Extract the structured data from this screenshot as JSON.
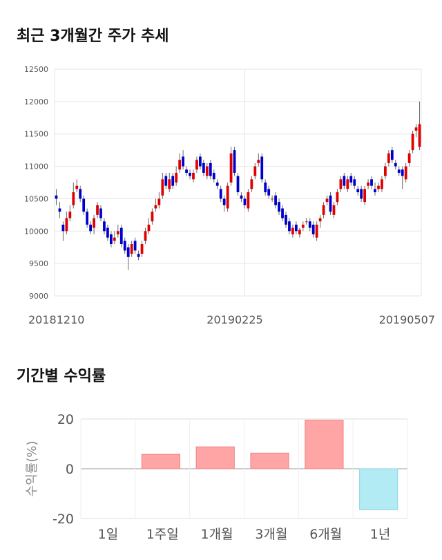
{
  "titles": {
    "price_trend": "최근 3개월간 주가 추세",
    "period_returns": "기간별 수익률"
  },
  "colors": {
    "up": "#e00000",
    "down": "#0000cc",
    "wick": "#666666",
    "grid": "#e6e6e6",
    "positive_bar": "#ffa5a5",
    "negative_bar": "#b3ebf5"
  },
  "chart_data": [
    {
      "type": "candlestick",
      "title": "최근 3개월간 주가 추세",
      "ylim": [
        9000,
        12500
      ],
      "y_ticks": [
        "12500",
        "12000",
        "11500",
        "11000",
        "10500",
        "10000",
        "9500",
        "9000"
      ],
      "x_tick_labels": [
        "20181210",
        "20190225",
        "20190507"
      ],
      "grid": true,
      "closes": [
        10500,
        10300,
        10000,
        10200,
        10300,
        10600,
        10700,
        10500,
        10300,
        10100,
        10000,
        10200,
        10400,
        10200,
        10000,
        9900,
        9800,
        9900,
        10000,
        9800,
        9700,
        9600,
        9800,
        9700,
        9600,
        9800,
        10000,
        10100,
        10300,
        10400,
        10500,
        10800,
        10700,
        10800,
        10700,
        10900,
        11100,
        11000,
        10900,
        10850,
        10900,
        11100,
        11000,
        10900,
        11000,
        10850,
        10800,
        10700,
        10500,
        10400,
        10700,
        11200,
        10900,
        10600,
        10500,
        10400,
        10600,
        10800,
        11000,
        11100,
        10800,
        10600,
        10550,
        10500,
        10400,
        10300,
        10200,
        10100,
        10000,
        10050,
        10000,
        10020,
        10100,
        10150,
        10050,
        9950,
        10100,
        10200,
        10400,
        10500,
        10300,
        10400,
        10600,
        10800,
        10700,
        10800,
        10750,
        10700,
        10600,
        10500,
        10650,
        10750,
        10700,
        10600,
        10700,
        10800,
        11000,
        11200,
        11100,
        11000,
        10900,
        10850,
        11000,
        11200,
        11500,
        11600,
        11650
      ],
      "opens": [
        10550,
        10350,
        10100,
        10000,
        10200,
        10400,
        10650,
        10650,
        10500,
        10300,
        10100,
        10050,
        10250,
        10350,
        10150,
        10050,
        9950,
        9850,
        9950,
        10050,
        9850,
        9750,
        9650,
        9850,
        9650,
        9650,
        9850,
        10000,
        10150,
        10350,
        10400,
        10550,
        10850,
        10650,
        10850,
        10750,
        10950,
        11150,
        10950,
        10900,
        10800,
        10950,
        11150,
        11050,
        10850,
        11050,
        10900,
        10750,
        10650,
        10500,
        10350,
        10750,
        11250,
        10850,
        10550,
        10500,
        10350,
        10650,
        10850,
        11050,
        11150,
        10750,
        10650,
        10500,
        10550,
        10450,
        10350,
        10250,
        10150,
        9950,
        10100,
        9950,
        10050,
        10150,
        10150,
        10100,
        9900,
        10150,
        10250,
        10450,
        10550,
        10250,
        10450,
        10650,
        10850,
        10650,
        10850,
        10800,
        10650,
        10650,
        10450,
        10700,
        10800,
        10650,
        10650,
        10650,
        10850,
        11050,
        11250,
        11050,
        10950,
        10950,
        10800,
        11050,
        11250,
        11550,
        11300
      ],
      "highs": [
        10650,
        10450,
        10150,
        10300,
        10400,
        10750,
        10800,
        10700,
        10550,
        10350,
        10150,
        10250,
        10450,
        10400,
        10200,
        10100,
        10000,
        10000,
        10100,
        10100,
        9900,
        9800,
        9850,
        9900,
        9700,
        9850,
        10050,
        10200,
        10350,
        10500,
        10600,
        10900,
        10900,
        10900,
        10900,
        11000,
        11200,
        11250,
        11000,
        10950,
        10950,
        11150,
        11200,
        11100,
        11050,
        11100,
        10950,
        10800,
        10700,
        10550,
        10750,
        11300,
        11300,
        10900,
        10600,
        10550,
        10650,
        10850,
        11050,
        11200,
        11200,
        10800,
        10700,
        10550,
        10600,
        10500,
        10400,
        10300,
        10200,
        10100,
        10150,
        10050,
        10150,
        10200,
        10200,
        10150,
        10150,
        10250,
        10450,
        10550,
        10600,
        10450,
        10650,
        10850,
        10900,
        10850,
        10900,
        10850,
        10700,
        10700,
        10700,
        10800,
        10850,
        10750,
        10750,
        10850,
        11050,
        11250,
        11300,
        11100,
        11000,
        11000,
        11050,
        11250,
        11550,
        11650,
        12000
      ],
      "lows": [
        10400,
        10200,
        9850,
        9950,
        10150,
        10350,
        10600,
        10450,
        10250,
        10050,
        9950,
        9950,
        10200,
        10150,
        9950,
        9850,
        9750,
        9800,
        9900,
        9750,
        9650,
        9400,
        9600,
        9650,
        9550,
        9600,
        9800,
        9950,
        10100,
        10300,
        10350,
        10500,
        10650,
        10600,
        10650,
        10700,
        10900,
        10950,
        10850,
        10800,
        10750,
        10900,
        10950,
        10850,
        10800,
        10800,
        10750,
        10650,
        10450,
        10300,
        10300,
        10700,
        10850,
        10550,
        10450,
        10350,
        10300,
        10600,
        10800,
        11000,
        10750,
        10550,
        10500,
        10450,
        10350,
        10250,
        10150,
        10050,
        9950,
        9900,
        9950,
        9900,
        10000,
        10100,
        10000,
        9900,
        9850,
        10050,
        10200,
        10400,
        10250,
        10200,
        10400,
        10600,
        10650,
        10600,
        10700,
        10650,
        10550,
        10450,
        10400,
        10650,
        10650,
        10550,
        10600,
        10600,
        10800,
        11000,
        11050,
        10950,
        10850,
        10650,
        10750,
        11000,
        11200,
        11450,
        11250
      ]
    },
    {
      "type": "bar",
      "title": "기간별 수익률",
      "categories": [
        "1일",
        "1주일",
        "1개월",
        "3개월",
        "6개월",
        "1년"
      ],
      "values": [
        0.0,
        5.8,
        8.8,
        6.3,
        19.5,
        -16.5
      ],
      "ylabel": "수익률(%)",
      "ylim": [
        -20,
        20
      ],
      "y_ticks": [
        "20",
        "0",
        "-20"
      ],
      "grid": true
    }
  ]
}
